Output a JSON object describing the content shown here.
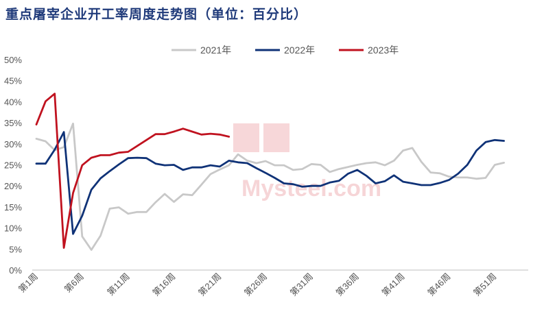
{
  "chart_data": {
    "type": "line",
    "title": "重点屠宰企业开工率周度走势图（单位：百分比）",
    "x_tick_labels": [
      "第1周",
      "第6周",
      "第11周",
      "第16周",
      "第21周",
      "第26周",
      "第31周",
      "第36周",
      "第41周",
      "第46周",
      "第51周"
    ],
    "yticks": [
      "0%",
      "5%",
      "10%",
      "15%",
      "20%",
      "25%",
      "30%",
      "35%",
      "40%",
      "45%",
      "50%"
    ],
    "ylim": [
      0,
      50
    ],
    "xlim": [
      1,
      53
    ],
    "legend_position": "top",
    "series": [
      {
        "name": "2021年",
        "color": "#c8c8c8",
        "values": [
          31.2,
          30.6,
          28.5,
          29.2,
          34.8,
          8.0,
          4.8,
          8.2,
          14.6,
          14.9,
          13.4,
          13.8,
          13.8,
          16.1,
          18.1,
          16.2,
          18.0,
          17.8,
          20.3,
          22.8,
          23.9,
          24.9,
          27.5,
          26.0,
          25.4,
          25.9,
          24.9,
          24.9,
          23.8,
          24.0,
          25.2,
          25.0,
          23.3,
          24.0,
          24.5,
          25.0,
          25.4,
          25.6,
          24.9,
          26.0,
          28.4,
          29.0,
          25.7,
          23.2,
          23.0,
          22.2,
          22.0,
          22.0,
          21.7,
          21.9,
          25.0,
          25.5
        ]
      },
      {
        "name": "2022年",
        "color": "#0f3277",
        "values": [
          25.3,
          25.3,
          28.6,
          32.8,
          8.6,
          12.9,
          19.1,
          21.8,
          23.5,
          25.1,
          26.6,
          26.7,
          26.6,
          25.3,
          24.9,
          25.0,
          23.8,
          24.4,
          24.4,
          24.9,
          24.6,
          26.0,
          25.6,
          25.4,
          24.2,
          23.1,
          21.9,
          20.6,
          20.4,
          19.8,
          20.0,
          20.0,
          20.8,
          21.2,
          22.9,
          23.8,
          22.4,
          20.6,
          21.1,
          22.5,
          21.0,
          20.6,
          20.2,
          20.2,
          20.7,
          21.4,
          22.9,
          25.0,
          28.4,
          30.4,
          30.9,
          30.7
        ]
      },
      {
        "name": "2023年",
        "color": "#c0121f",
        "values": [
          34.6,
          40.1,
          41.9,
          5.3,
          18.3,
          24.9,
          26.7,
          27.3,
          27.3,
          27.9,
          28.1,
          29.5,
          30.9,
          32.3,
          32.3,
          32.9,
          33.6,
          32.9,
          32.2,
          32.4,
          32.2,
          31.7
        ]
      }
    ]
  },
  "watermark": "我的钢铁网 Mysteel.com"
}
